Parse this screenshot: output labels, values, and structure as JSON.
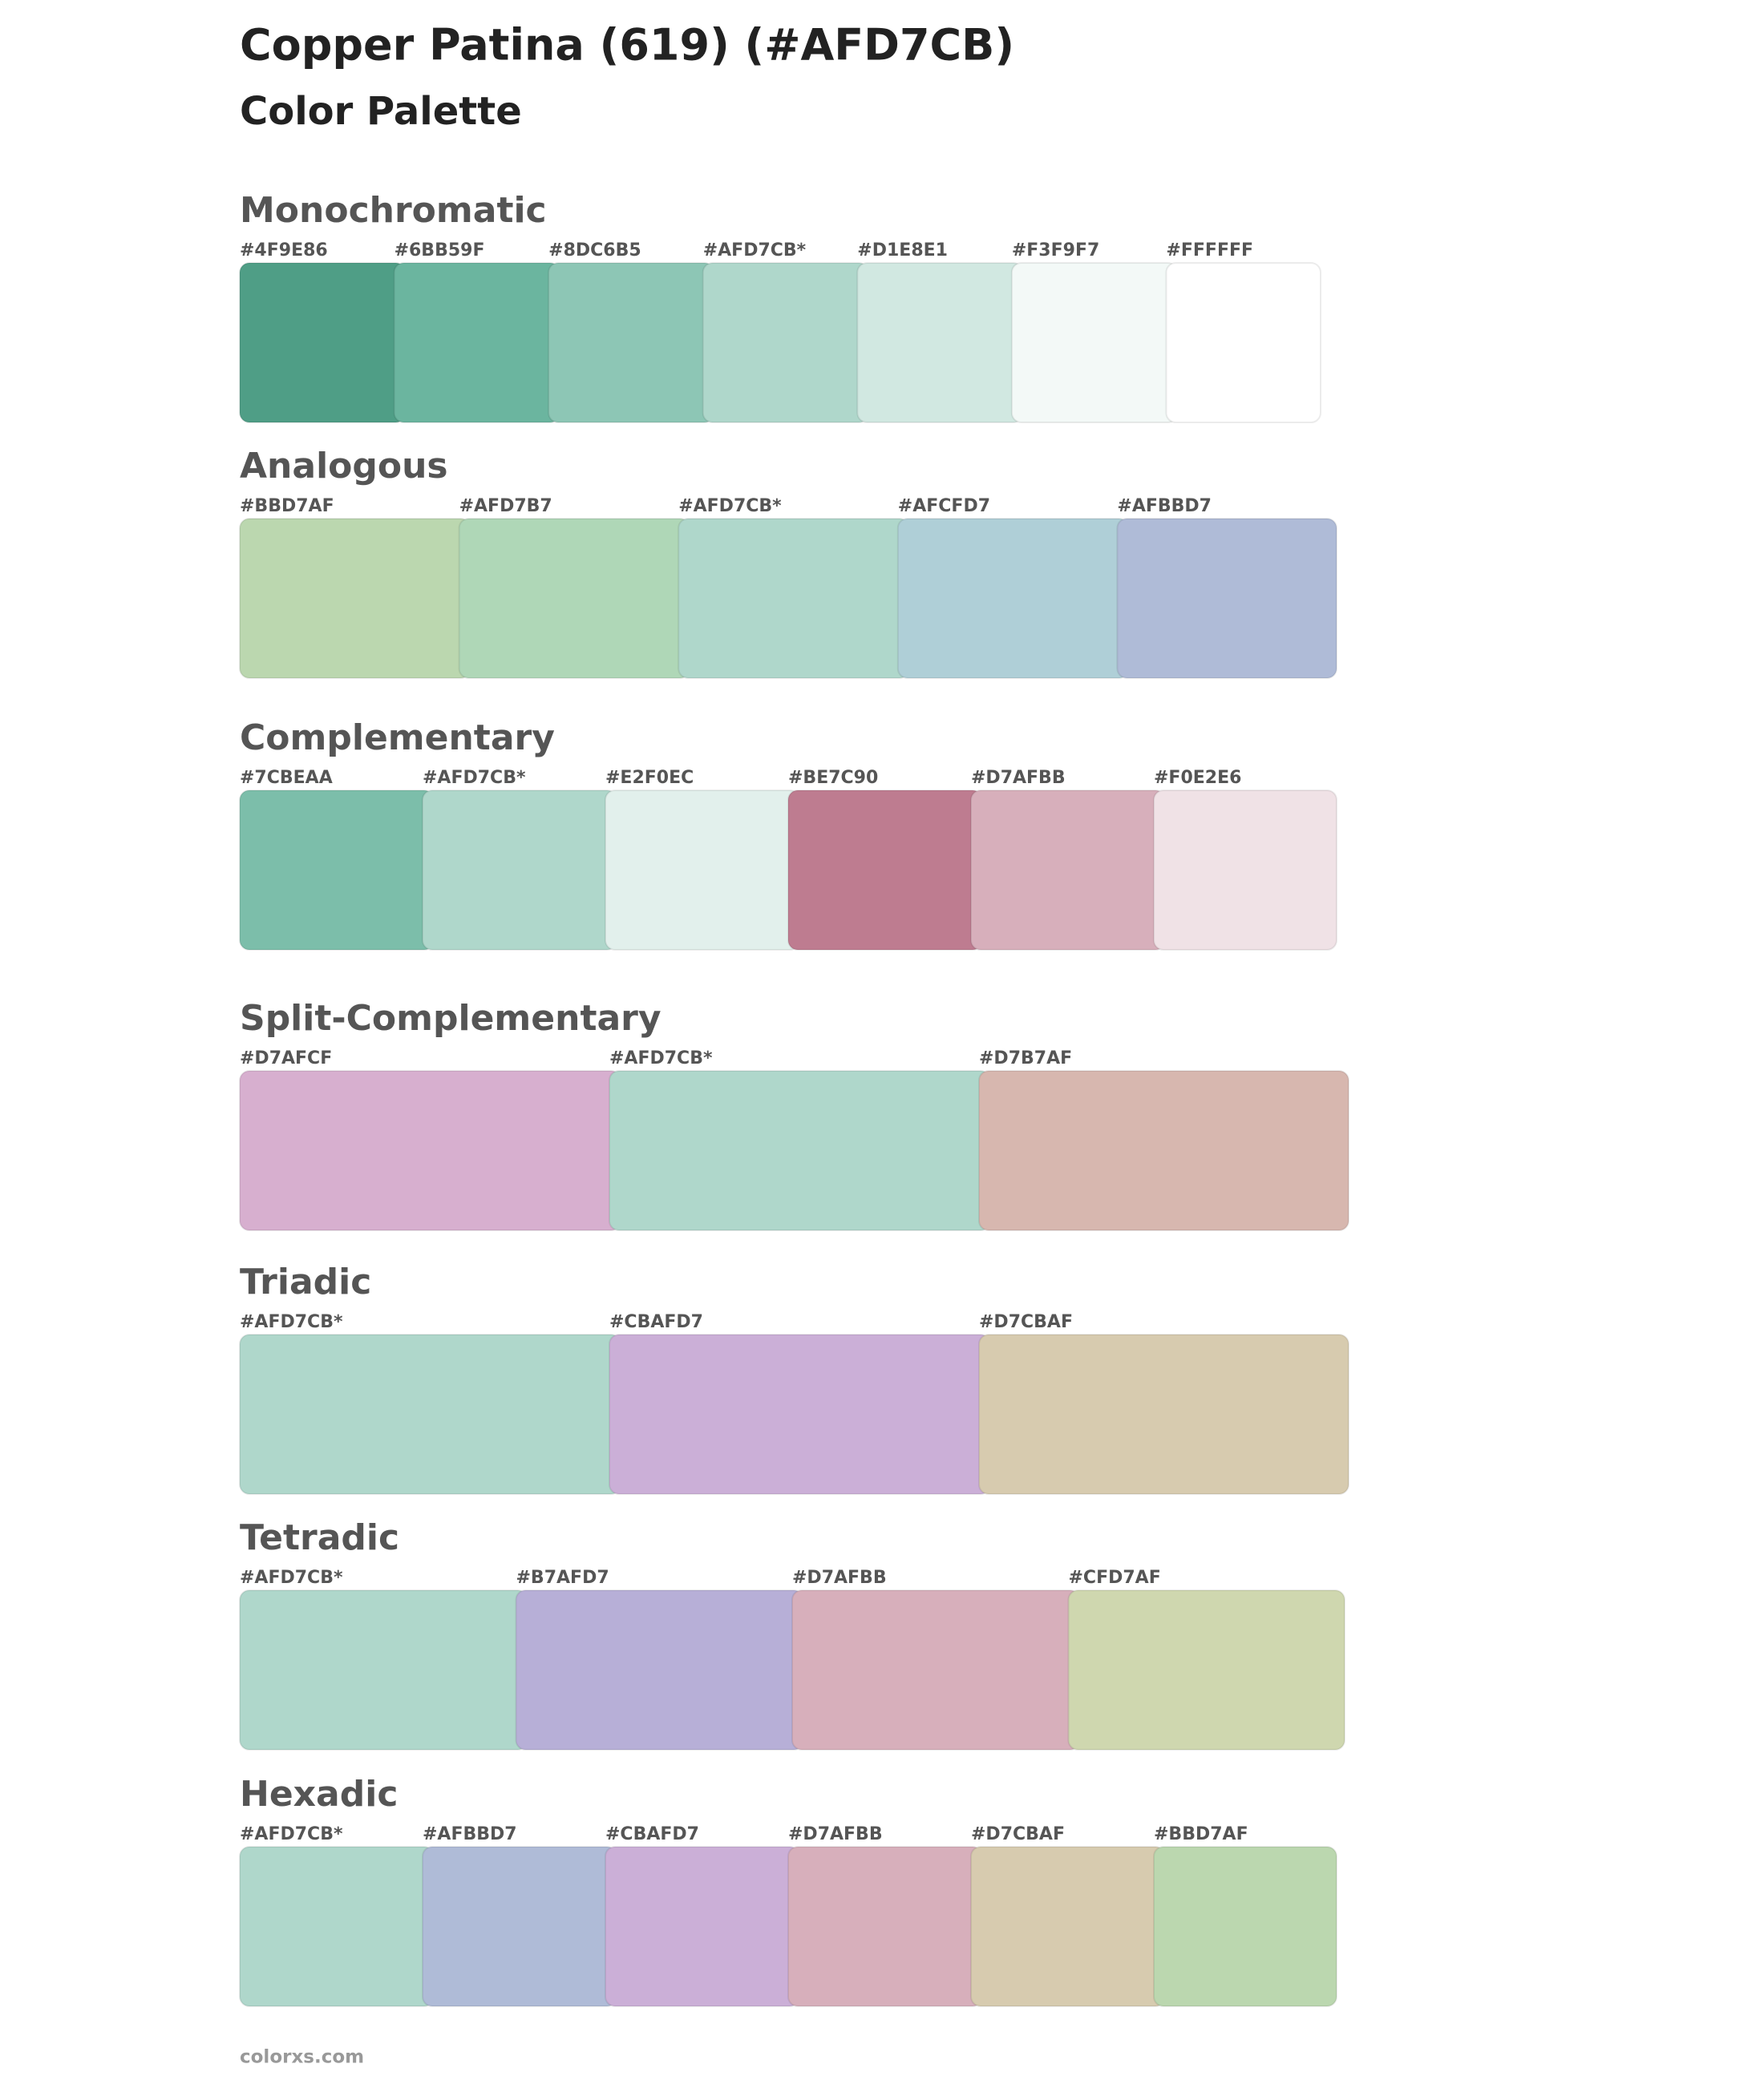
{
  "header": {
    "title": "Copper Patina (619) (#AFD7CB)",
    "subtitle": "Color Palette"
  },
  "sections": [
    {
      "name": "Monochromatic",
      "swatches": [
        {
          "label": "#4F9E86",
          "color": "#4F9E86"
        },
        {
          "label": "#6BB59F",
          "color": "#6BB59F"
        },
        {
          "label": "#8DC6B5",
          "color": "#8DC6B5"
        },
        {
          "label": "#AFD7CB*",
          "color": "#AFD7CB"
        },
        {
          "label": "#D1E8E1",
          "color": "#D1E8E1"
        },
        {
          "label": "#F3F9F7",
          "color": "#F3F9F7"
        },
        {
          "label": "#FFFFFF",
          "color": "#FFFFFF"
        }
      ]
    },
    {
      "name": "Analogous",
      "swatches": [
        {
          "label": "#BBD7AF",
          "color": "#BBD7AF"
        },
        {
          "label": "#AFD7B7",
          "color": "#AFD7B7"
        },
        {
          "label": "#AFD7CB*",
          "color": "#AFD7CB"
        },
        {
          "label": "#AFCFD7",
          "color": "#AFCFD7"
        },
        {
          "label": "#AFBBD7",
          "color": "#AFBBD7"
        }
      ]
    },
    {
      "name": "Complementary",
      "swatches": [
        {
          "label": "#7CBEAA",
          "color": "#7CBEAA"
        },
        {
          "label": "#AFD7CB*",
          "color": "#AFD7CB"
        },
        {
          "label": "#E2F0EC",
          "color": "#E2F0EC"
        },
        {
          "label": "#BE7C90",
          "color": "#BE7C90"
        },
        {
          "label": "#D7AFBB",
          "color": "#D7AFBB"
        },
        {
          "label": "#F0E2E6",
          "color": "#F0E2E6"
        }
      ]
    },
    {
      "name": "Split-Complementary",
      "swatches": [
        {
          "label": "#D7AFCF",
          "color": "#D7AFCF"
        },
        {
          "label": "#AFD7CB*",
          "color": "#AFD7CB"
        },
        {
          "label": "#D7B7AF",
          "color": "#D7B7AF"
        }
      ]
    },
    {
      "name": "Triadic",
      "swatches": [
        {
          "label": "#AFD7CB*",
          "color": "#AFD7CB"
        },
        {
          "label": "#CBAFD7",
          "color": "#CBAFD7"
        },
        {
          "label": "#D7CBAF",
          "color": "#D7CBAF"
        }
      ]
    },
    {
      "name": "Tetradic",
      "swatches": [
        {
          "label": "#AFD7CB*",
          "color": "#AFD7CB"
        },
        {
          "label": "#B7AFD7",
          "color": "#B7AFD7"
        },
        {
          "label": "#D7AFBB",
          "color": "#D7AFBB"
        },
        {
          "label": "#CFD7AF",
          "color": "#CFD7AF"
        }
      ]
    },
    {
      "name": "Hexadic",
      "swatches": [
        {
          "label": "#AFD7CB*",
          "color": "#AFD7CB"
        },
        {
          "label": "#AFBBD7",
          "color": "#AFBBD7"
        },
        {
          "label": "#CBAFD7",
          "color": "#CBAFD7"
        },
        {
          "label": "#D7AFBB",
          "color": "#D7AFBB"
        },
        {
          "label": "#D7CBAF",
          "color": "#D7CBAF"
        },
        {
          "label": "#BBD7AF",
          "color": "#BBD7AF"
        }
      ]
    }
  ],
  "footer": "colorxs.com"
}
